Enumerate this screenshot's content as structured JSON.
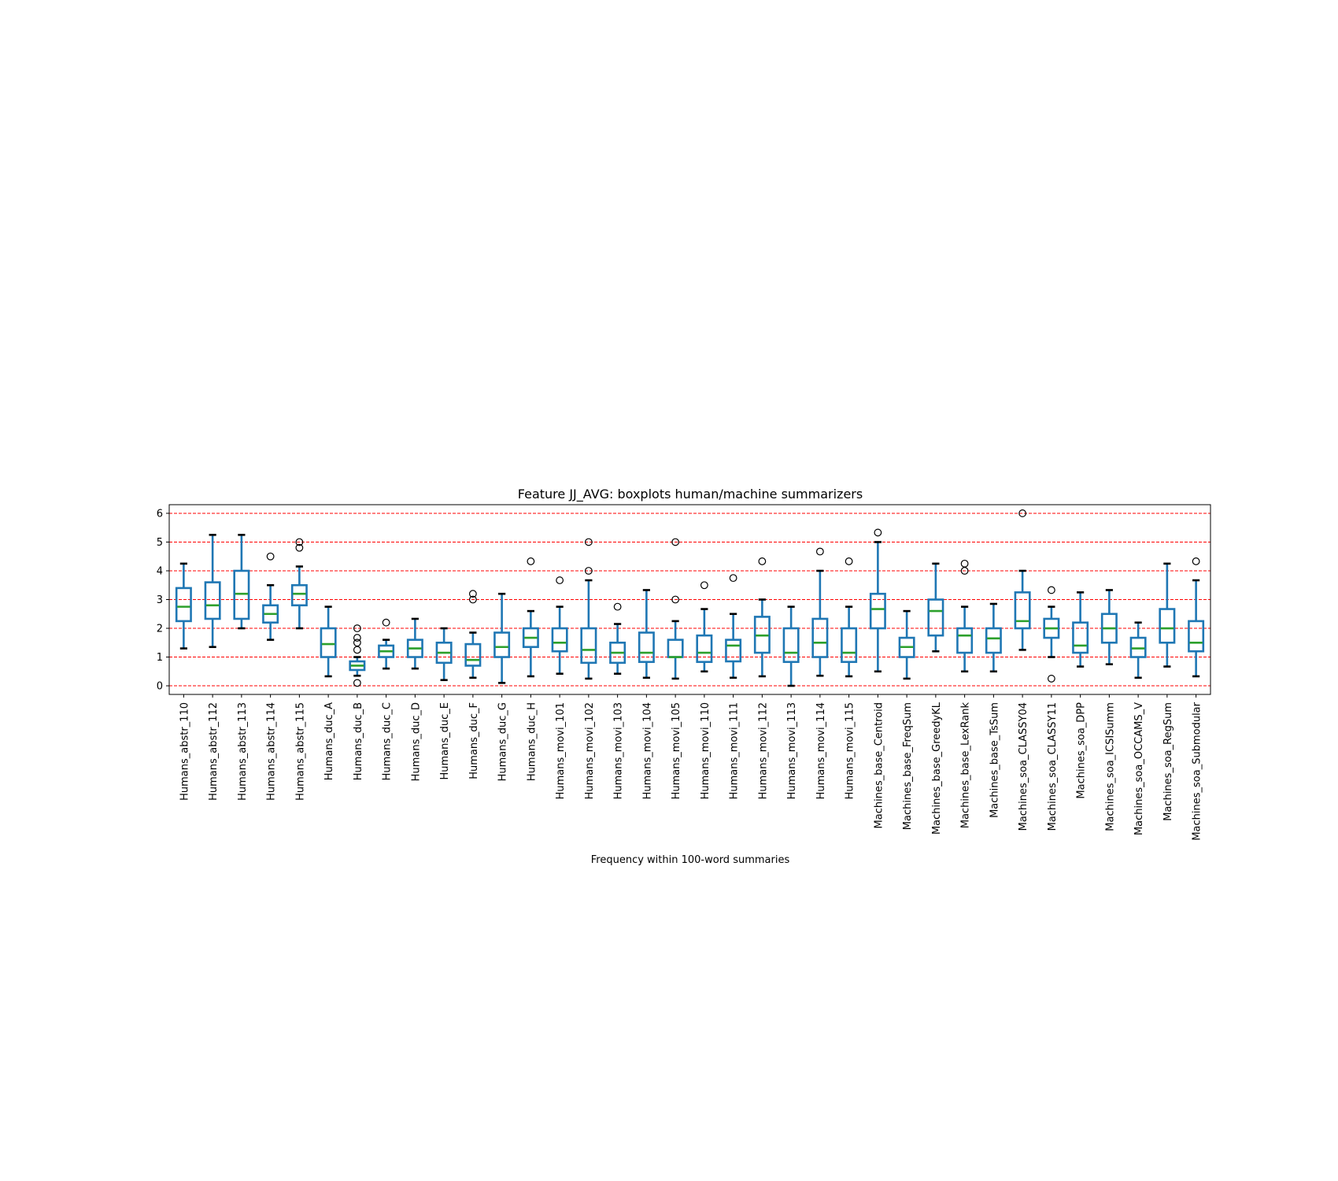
{
  "chart_data": {
    "type": "boxplot",
    "title": "Feature JJ_AVG: boxplots human/machine summarizers",
    "xlabel": "Frequency within 100-word summaries",
    "ylabel": "",
    "ylim": [
      -0.3,
      6.3
    ],
    "yticks": [
      0,
      1,
      2,
      3,
      4,
      5,
      6
    ],
    "grid": "horizontal dashed red lines",
    "colors": {
      "box": "#1f77b4",
      "median": "#2ca02c",
      "grid": "#ff0000",
      "whisker_cap": "#000000",
      "flier": "#000000"
    },
    "categories": [
      "Humans_abstr_110",
      "Humans_abstr_112",
      "Humans_abstr_113",
      "Humans_abstr_114",
      "Humans_abstr_115",
      "Humans_duc_A",
      "Humans_duc_B",
      "Humans_duc_C",
      "Humans_duc_D",
      "Humans_duc_E",
      "Humans_duc_F",
      "Humans_duc_G",
      "Humans_duc_H",
      "Humans_movi_101",
      "Humans_movi_102",
      "Humans_movi_103",
      "Humans_movi_104",
      "Humans_movi_105",
      "Humans_movi_110",
      "Humans_movi_111",
      "Humans_movi_112",
      "Humans_movi_113",
      "Humans_movi_114",
      "Humans_movi_115",
      "Machines_base_Centroid",
      "Machines_base_FreqSum",
      "Machines_base_GreedyKL",
      "Machines_base_LexRank",
      "Machines_base_TsSum",
      "Machines_soa_CLASSY04",
      "Machines_soa_CLASSY11",
      "Machines_soa_DPP",
      "Machines_soa_ICSISumm",
      "Machines_soa_OCCAMS_V",
      "Machines_soa_RegSum",
      "Machines_soa_Submodular"
    ],
    "boxes": [
      {
        "whislo": 1.3,
        "q1": 2.25,
        "med": 2.75,
        "q3": 3.4,
        "whishi": 4.25,
        "fliers": []
      },
      {
        "whislo": 1.35,
        "q1": 2.33,
        "med": 2.8,
        "q3": 3.6,
        "whishi": 5.25,
        "fliers": []
      },
      {
        "whislo": 2.0,
        "q1": 2.33,
        "med": 3.2,
        "q3": 4.0,
        "whishi": 5.25,
        "fliers": []
      },
      {
        "whislo": 1.6,
        "q1": 2.2,
        "med": 2.5,
        "q3": 2.8,
        "whishi": 3.5,
        "fliers": [
          4.5
        ]
      },
      {
        "whislo": 2.0,
        "q1": 2.8,
        "med": 3.2,
        "q3": 3.5,
        "whishi": 4.15,
        "fliers": [
          4.8,
          5.0
        ]
      },
      {
        "whislo": 0.33,
        "q1": 1.0,
        "med": 1.45,
        "q3": 2.0,
        "whishi": 2.75,
        "fliers": []
      },
      {
        "whislo": 0.35,
        "q1": 0.55,
        "med": 0.7,
        "q3": 0.85,
        "whishi": 1.0,
        "fliers": [
          0.1,
          1.25,
          1.5,
          1.67,
          2.0
        ]
      },
      {
        "whislo": 0.6,
        "q1": 1.0,
        "med": 1.2,
        "q3": 1.4,
        "whishi": 1.6,
        "fliers": [
          2.2
        ]
      },
      {
        "whislo": 0.6,
        "q1": 1.0,
        "med": 1.3,
        "q3": 1.6,
        "whishi": 2.33,
        "fliers": []
      },
      {
        "whislo": 0.2,
        "q1": 0.8,
        "med": 1.15,
        "q3": 1.5,
        "whishi": 2.0,
        "fliers": []
      },
      {
        "whislo": 0.28,
        "q1": 0.7,
        "med": 0.9,
        "q3": 1.45,
        "whishi": 1.85,
        "fliers": [
          3.0,
          3.2
        ]
      },
      {
        "whislo": 0.1,
        "q1": 1.0,
        "med": 1.35,
        "q3": 1.85,
        "whishi": 3.2,
        "fliers": []
      },
      {
        "whislo": 0.33,
        "q1": 1.35,
        "med": 1.67,
        "q3": 2.0,
        "whishi": 2.6,
        "fliers": [
          4.33
        ]
      },
      {
        "whislo": 0.42,
        "q1": 1.2,
        "med": 1.5,
        "q3": 2.0,
        "whishi": 2.75,
        "fliers": [
          3.67
        ]
      },
      {
        "whislo": 0.25,
        "q1": 0.8,
        "med": 1.25,
        "q3": 2.0,
        "whishi": 3.67,
        "fliers": [
          4.0,
          5.0
        ]
      },
      {
        "whislo": 0.42,
        "q1": 0.8,
        "med": 1.15,
        "q3": 1.5,
        "whishi": 2.15,
        "fliers": [
          2.75
        ]
      },
      {
        "whislo": 0.28,
        "q1": 0.83,
        "med": 1.15,
        "q3": 1.85,
        "whishi": 3.33,
        "fliers": []
      },
      {
        "whislo": 0.25,
        "q1": 1.0,
        "med": 1.0,
        "q3": 1.6,
        "whishi": 2.25,
        "fliers": [
          3.0,
          5.0
        ]
      },
      {
        "whislo": 0.5,
        "q1": 0.83,
        "med": 1.15,
        "q3": 1.75,
        "whishi": 2.67,
        "fliers": [
          3.5
        ]
      },
      {
        "whislo": 0.28,
        "q1": 0.85,
        "med": 1.4,
        "q3": 1.6,
        "whishi": 2.5,
        "fliers": [
          3.75
        ]
      },
      {
        "whislo": 0.33,
        "q1": 1.15,
        "med": 1.75,
        "q3": 2.4,
        "whishi": 3.0,
        "fliers": [
          4.33
        ]
      },
      {
        "whislo": 0.0,
        "q1": 0.83,
        "med": 1.15,
        "q3": 2.0,
        "whishi": 2.75,
        "fliers": []
      },
      {
        "whislo": 0.35,
        "q1": 1.0,
        "med": 1.5,
        "q3": 2.33,
        "whishi": 4.0,
        "fliers": [
          4.67
        ]
      },
      {
        "whislo": 0.33,
        "q1": 0.83,
        "med": 1.15,
        "q3": 2.0,
        "whishi": 2.75,
        "fliers": [
          4.33
        ]
      },
      {
        "whislo": 0.5,
        "q1": 2.0,
        "med": 2.67,
        "q3": 3.2,
        "whishi": 5.0,
        "fliers": [
          5.33
        ]
      },
      {
        "whislo": 0.25,
        "q1": 1.0,
        "med": 1.35,
        "q3": 1.67,
        "whishi": 2.6,
        "fliers": []
      },
      {
        "whislo": 1.2,
        "q1": 1.75,
        "med": 2.6,
        "q3": 3.0,
        "whishi": 4.25,
        "fliers": []
      },
      {
        "whislo": 0.5,
        "q1": 1.15,
        "med": 1.75,
        "q3": 2.0,
        "whishi": 2.75,
        "fliers": [
          4.0,
          4.25
        ]
      },
      {
        "whislo": 0.5,
        "q1": 1.15,
        "med": 1.65,
        "q3": 2.0,
        "whishi": 2.85,
        "fliers": []
      },
      {
        "whislo": 1.25,
        "q1": 2.0,
        "med": 2.25,
        "q3": 3.25,
        "whishi": 4.0,
        "fliers": [
          6.0
        ]
      },
      {
        "whislo": 1.0,
        "q1": 1.67,
        "med": 2.0,
        "q3": 2.33,
        "whishi": 2.75,
        "fliers": [
          0.25,
          3.33
        ]
      },
      {
        "whislo": 0.67,
        "q1": 1.15,
        "med": 1.4,
        "q3": 2.2,
        "whishi": 3.25,
        "fliers": []
      },
      {
        "whislo": 0.75,
        "q1": 1.5,
        "med": 2.0,
        "q3": 2.5,
        "whishi": 3.33,
        "fliers": []
      },
      {
        "whislo": 0.28,
        "q1": 1.0,
        "med": 1.3,
        "q3": 1.67,
        "whishi": 2.2,
        "fliers": []
      },
      {
        "whislo": 0.67,
        "q1": 1.5,
        "med": 2.0,
        "q3": 2.67,
        "whishi": 4.25,
        "fliers": []
      },
      {
        "whislo": 0.33,
        "q1": 1.2,
        "med": 1.5,
        "q3": 2.25,
        "whishi": 3.67,
        "fliers": [
          4.33
        ]
      }
    ]
  }
}
